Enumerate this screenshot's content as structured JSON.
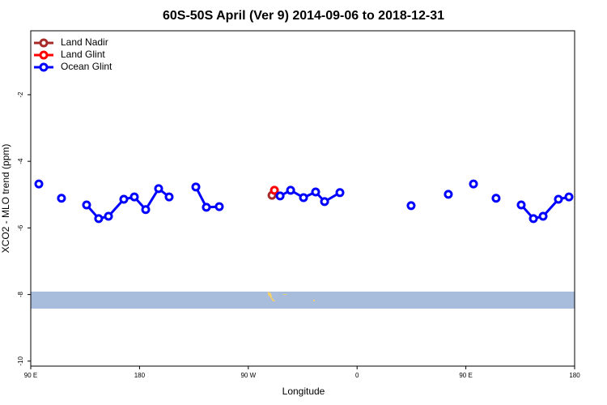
{
  "chart_data": {
    "type": "line",
    "title": "60S-50S April (Ver 9)   2014-09-06 to 2018-12-31",
    "x_label": "Longitude",
    "y_label": "XCO2 - MLO trend (ppm)",
    "xlim": [
      90,
      540
    ],
    "ylim": [
      -10.15,
      -0.08
    ],
    "xticks": [
      {
        "value": 90,
        "label": "90 E"
      },
      180,
      {
        "value": 270,
        "label": "90 W"
      },
      {
        "value": 360,
        "label": "0"
      },
      {
        "value": 450,
        "label": "90 E"
      },
      {
        "value": 540,
        "label": "180"
      }
    ],
    "yticks": [
      -2,
      -4,
      -6,
      -8,
      -10
    ],
    "legend": "top-left",
    "series": [
      {
        "name": "Land Nadir",
        "color": "#a52a2a",
        "x": [
          289.6
        ],
        "values": [
          -5.02
        ]
      },
      {
        "name": "Land Glint",
        "color": "#ff0000",
        "x": [
          291.6
        ],
        "values": [
          -4.87
        ]
      },
      {
        "name": "Ocean Glint",
        "color": "#0000ff",
        "x": [
          96.7,
          null,
          115.4,
          null,
          136.2,
          146.2,
          154.3,
          167.0,
          175.7,
          185.1,
          195.8,
          204.5,
          null,
          226.6,
          235.3,
          246.0,
          null,
          296.3,
          305.0,
          315.7,
          325.7,
          333.1,
          345.8,
          null,
          404.7,
          null,
          435.5,
          null,
          456.3,
          null,
          475.0,
          null,
          495.8,
          505.9,
          513.9,
          526.6,
          535.3
        ],
        "values": [
          -4.68,
          null,
          -5.11,
          null,
          -5.31,
          -5.72,
          -5.65,
          -5.14,
          -5.07,
          -5.45,
          -4.82,
          -5.07,
          null,
          -4.77,
          -5.38,
          -5.36,
          null,
          -5.04,
          -4.87,
          -5.09,
          -4.92,
          -5.21,
          -4.94,
          null,
          -5.33,
          null,
          -4.99,
          null,
          -4.68,
          null,
          -5.11,
          null,
          -5.31,
          -5.72,
          -5.65,
          -5.14,
          -5.07
        ]
      }
    ]
  }
}
